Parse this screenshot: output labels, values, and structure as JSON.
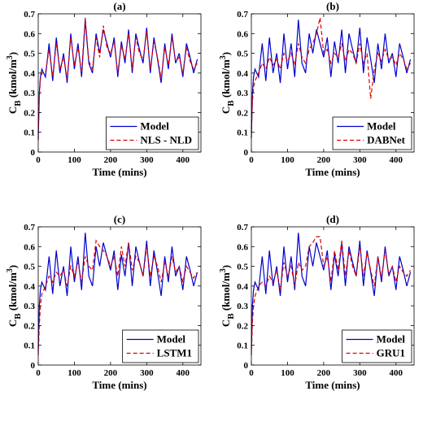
{
  "chart_data": [
    {
      "type": "line",
      "title": "(a)",
      "xlabel": "Time (mins)",
      "ylabel": [
        "C",
        "B",
        " (kmol/m",
        "3",
        ")"
      ],
      "xlim": [
        0,
        450
      ],
      "xticks": [
        0,
        100,
        200,
        300,
        400
      ],
      "ylim": [
        0,
        0.7
      ],
      "yticks": [
        0,
        0.1,
        0.2,
        0.3,
        0.4,
        0.5,
        0.6,
        0.7
      ],
      "legend": "lower right",
      "x": [
        0,
        3,
        6,
        10,
        20,
        30,
        40,
        50,
        60,
        70,
        80,
        90,
        100,
        110,
        120,
        130,
        140,
        150,
        160,
        170,
        180,
        190,
        200,
        210,
        220,
        230,
        240,
        250,
        260,
        270,
        280,
        290,
        300,
        310,
        320,
        330,
        340,
        350,
        360,
        370,
        380,
        390,
        400,
        410,
        420,
        430,
        440
      ],
      "series": [
        {
          "name": "Model",
          "color": "#0000cc",
          "linestyle": "solid",
          "values": [
            0.07,
            0.3,
            0.38,
            0.42,
            0.38,
            0.55,
            0.36,
            0.58,
            0.4,
            0.5,
            0.35,
            0.6,
            0.42,
            0.55,
            0.38,
            0.67,
            0.45,
            0.4,
            0.6,
            0.5,
            0.62,
            0.55,
            0.48,
            0.58,
            0.38,
            0.56,
            0.45,
            0.62,
            0.4,
            0.6,
            0.52,
            0.45,
            0.63,
            0.4,
            0.58,
            0.47,
            0.35,
            0.55,
            0.42,
            0.6,
            0.45,
            0.5,
            0.38,
            0.55,
            0.48,
            0.4,
            0.47
          ]
        },
        {
          "name": "NLS - NLD",
          "color": "#dd0000",
          "linestyle": "dashed",
          "values": [
            0.06,
            0.28,
            0.37,
            0.4,
            0.4,
            0.52,
            0.38,
            0.55,
            0.42,
            0.48,
            0.37,
            0.58,
            0.44,
            0.53,
            0.4,
            0.68,
            0.46,
            0.42,
            0.58,
            0.48,
            0.64,
            0.53,
            0.5,
            0.56,
            0.4,
            0.54,
            0.47,
            0.6,
            0.42,
            0.58,
            0.5,
            0.47,
            0.61,
            0.42,
            0.56,
            0.48,
            0.37,
            0.53,
            0.44,
            0.58,
            0.46,
            0.48,
            0.4,
            0.53,
            0.46,
            0.42,
            0.45
          ]
        }
      ]
    },
    {
      "type": "line",
      "title": "(b)",
      "xlabel": "Time (mins)",
      "ylabel": [
        "C",
        "B",
        " (kmol/m",
        "3",
        ")"
      ],
      "xlim": [
        0,
        450
      ],
      "xticks": [
        0,
        100,
        200,
        300,
        400
      ],
      "ylim": [
        0,
        0.7
      ],
      "yticks": [
        0,
        0.1,
        0.2,
        0.3,
        0.4,
        0.5,
        0.6,
        0.7
      ],
      "legend": "lower right",
      "x": [
        0,
        3,
        6,
        10,
        20,
        30,
        40,
        50,
        60,
        70,
        80,
        90,
        100,
        110,
        120,
        130,
        140,
        150,
        160,
        170,
        180,
        190,
        200,
        210,
        220,
        230,
        240,
        250,
        260,
        270,
        280,
        290,
        300,
        310,
        320,
        330,
        340,
        350,
        360,
        370,
        380,
        390,
        400,
        410,
        420,
        430,
        440
      ],
      "series": [
        {
          "name": "Model",
          "color": "#0000cc",
          "linestyle": "solid",
          "values": [
            0.07,
            0.3,
            0.38,
            0.42,
            0.38,
            0.55,
            0.36,
            0.58,
            0.4,
            0.5,
            0.35,
            0.6,
            0.42,
            0.55,
            0.38,
            0.67,
            0.45,
            0.4,
            0.6,
            0.5,
            0.62,
            0.55,
            0.48,
            0.58,
            0.38,
            0.56,
            0.45,
            0.62,
            0.4,
            0.6,
            0.52,
            0.45,
            0.63,
            0.4,
            0.58,
            0.47,
            0.35,
            0.55,
            0.42,
            0.6,
            0.45,
            0.5,
            0.38,
            0.55,
            0.48,
            0.4,
            0.47
          ]
        },
        {
          "name": "DABNet",
          "color": "#dd0000",
          "linestyle": "dashed",
          "values": [
            0.1,
            0.25,
            0.33,
            0.36,
            0.4,
            0.45,
            0.42,
            0.48,
            0.44,
            0.47,
            0.42,
            0.5,
            0.46,
            0.5,
            0.44,
            0.55,
            0.48,
            0.45,
            0.52,
            0.55,
            0.6,
            0.68,
            0.5,
            0.52,
            0.45,
            0.5,
            0.48,
            0.55,
            0.46,
            0.52,
            0.5,
            0.45,
            0.55,
            0.45,
            0.5,
            0.27,
            0.42,
            0.5,
            0.46,
            0.52,
            0.47,
            0.48,
            0.44,
            0.5,
            0.47,
            0.42,
            0.45
          ]
        }
      ]
    },
    {
      "type": "line",
      "title": "(c)",
      "xlabel": "Time (mins)",
      "ylabel": [
        "C",
        "B",
        " (kmol/m",
        "3",
        ")"
      ],
      "xlim": [
        0,
        450
      ],
      "xticks": [
        0,
        100,
        200,
        300,
        400
      ],
      "ylim": [
        0,
        0.7
      ],
      "yticks": [
        0,
        0.1,
        0.2,
        0.3,
        0.4,
        0.5,
        0.6,
        0.7
      ],
      "legend": "lower right",
      "x": [
        0,
        3,
        6,
        10,
        20,
        30,
        40,
        50,
        60,
        70,
        80,
        90,
        100,
        110,
        120,
        130,
        140,
        150,
        160,
        170,
        180,
        190,
        200,
        210,
        220,
        230,
        240,
        250,
        260,
        270,
        280,
        290,
        300,
        310,
        320,
        330,
        340,
        350,
        360,
        370,
        380,
        390,
        400,
        410,
        420,
        430,
        440
      ],
      "series": [
        {
          "name": "Model",
          "color": "#0000cc",
          "linestyle": "solid",
          "values": [
            0.07,
            0.3,
            0.38,
            0.42,
            0.38,
            0.55,
            0.36,
            0.58,
            0.4,
            0.5,
            0.35,
            0.6,
            0.42,
            0.55,
            0.38,
            0.67,
            0.45,
            0.4,
            0.6,
            0.5,
            0.62,
            0.55,
            0.48,
            0.58,
            0.38,
            0.56,
            0.45,
            0.62,
            0.4,
            0.6,
            0.52,
            0.45,
            0.63,
            0.4,
            0.58,
            0.47,
            0.35,
            0.55,
            0.42,
            0.6,
            0.45,
            0.5,
            0.38,
            0.55,
            0.48,
            0.4,
            0.47
          ]
        },
        {
          "name": "LSTM1",
          "color": "#dd0000",
          "linestyle": "dashed",
          "values": [
            0.05,
            0.2,
            0.3,
            0.36,
            0.4,
            0.45,
            0.42,
            0.47,
            0.45,
            0.48,
            0.4,
            0.5,
            0.45,
            0.52,
            0.42,
            0.55,
            0.5,
            0.48,
            0.63,
            0.6,
            0.58,
            0.55,
            0.5,
            0.55,
            0.45,
            0.6,
            0.5,
            0.62,
            0.48,
            0.55,
            0.52,
            0.45,
            0.6,
            0.45,
            0.55,
            0.5,
            0.42,
            0.52,
            0.45,
            0.55,
            0.47,
            0.5,
            0.42,
            0.5,
            0.47,
            0.44,
            0.47
          ]
        }
      ]
    },
    {
      "type": "line",
      "title": "(d)",
      "xlabel": "Time (mins)",
      "ylabel": [
        "C",
        "B",
        " (kmol/m",
        "3",
        ")"
      ],
      "xlim": [
        0,
        450
      ],
      "xticks": [
        0,
        100,
        200,
        300,
        400
      ],
      "ylim": [
        0,
        0.7
      ],
      "yticks": [
        0,
        0.1,
        0.2,
        0.3,
        0.4,
        0.5,
        0.6,
        0.7
      ],
      "legend": "lower right",
      "x": [
        0,
        3,
        6,
        10,
        20,
        30,
        40,
        50,
        60,
        70,
        80,
        90,
        100,
        110,
        120,
        130,
        140,
        150,
        160,
        170,
        180,
        190,
        200,
        210,
        220,
        230,
        240,
        250,
        260,
        270,
        280,
        290,
        300,
        310,
        320,
        330,
        340,
        350,
        360,
        370,
        380,
        390,
        400,
        410,
        420,
        430,
        440
      ],
      "series": [
        {
          "name": "Model",
          "color": "#0000cc",
          "linestyle": "solid",
          "values": [
            0.07,
            0.3,
            0.38,
            0.42,
            0.38,
            0.55,
            0.36,
            0.58,
            0.4,
            0.5,
            0.35,
            0.6,
            0.42,
            0.55,
            0.38,
            0.67,
            0.45,
            0.4,
            0.6,
            0.5,
            0.62,
            0.55,
            0.48,
            0.58,
            0.38,
            0.56,
            0.45,
            0.62,
            0.4,
            0.6,
            0.52,
            0.45,
            0.63,
            0.4,
            0.58,
            0.47,
            0.35,
            0.55,
            0.42,
            0.6,
            0.45,
            0.5,
            0.38,
            0.55,
            0.48,
            0.4,
            0.47
          ]
        },
        {
          "name": "GRU1",
          "color": "#dd0000",
          "linestyle": "dashed",
          "values": [
            0.05,
            0.22,
            0.3,
            0.35,
            0.4,
            0.42,
            0.4,
            0.45,
            0.42,
            0.48,
            0.38,
            0.52,
            0.45,
            0.5,
            0.4,
            0.52,
            0.48,
            0.5,
            0.6,
            0.62,
            0.65,
            0.65,
            0.5,
            0.55,
            0.42,
            0.58,
            0.48,
            0.63,
            0.45,
            0.58,
            0.5,
            0.45,
            0.6,
            0.45,
            0.57,
            0.48,
            0.4,
            0.55,
            0.44,
            0.58,
            0.46,
            0.5,
            0.42,
            0.5,
            0.47,
            0.45,
            0.48
          ]
        }
      ]
    }
  ]
}
